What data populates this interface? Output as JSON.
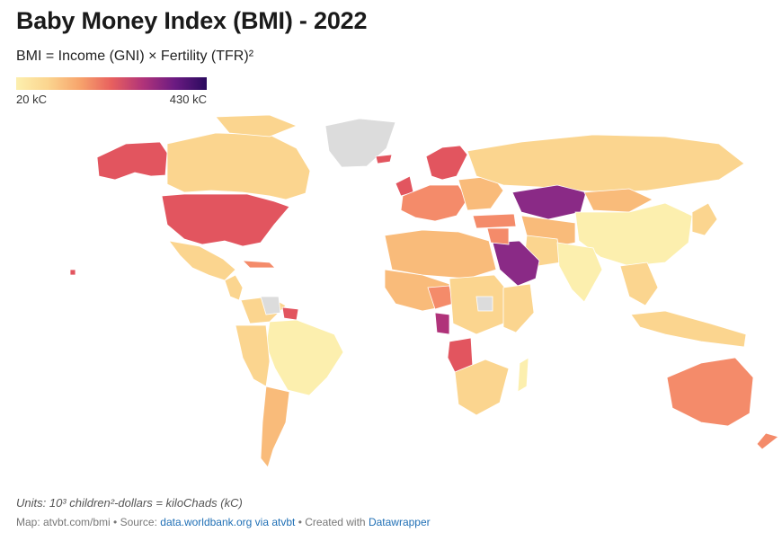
{
  "title": "Baby Money Index (BMI) - 2022",
  "subtitle": "BMI = Income (GNI) × Fertility (TFR)²",
  "legend": {
    "min_label": "20 kC",
    "max_label": "430 kC",
    "colors": [
      "#fcefae",
      "#fbd58f",
      "#f7a46c",
      "#e8605e",
      "#b0337a",
      "#6b1b82",
      "#2a0a5e"
    ]
  },
  "colors": {
    "no_data": "#dcdcdc",
    "very_low": "#fcefae",
    "low": "#fbd58f",
    "mid_low": "#f9bb7a",
    "mid": "#f48b6a",
    "mid_high": "#e2555f",
    "high": "#b0337a",
    "very_high": "#8a2a86"
  },
  "units": "Units: 10³ children²-dollars = kiloChads (kC)",
  "footer": {
    "map_credit": "Map: atvbt.com/bmi",
    "sep1": " • Source: ",
    "source_link": "data.worldbank.org via atvbt",
    "sep2": " • Created with ",
    "tool_link": "Datawrapper"
  }
}
